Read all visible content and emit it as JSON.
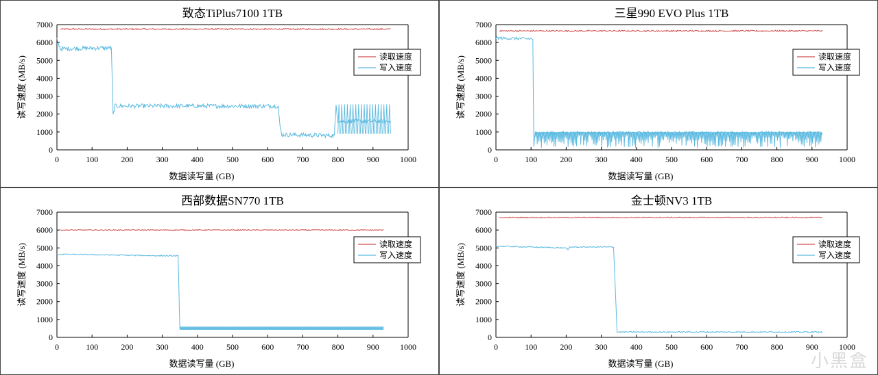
{
  "watermark": "小黑盒",
  "colors": {
    "read": "#d0504f",
    "write": "#5ab9e0",
    "axis": "#000000",
    "frame": "#000000"
  },
  "chart_data": [
    {
      "type": "line",
      "title": "致态TiPlus7100 1TB",
      "xlabel": "数据读写量 (GB)",
      "ylabel": "读写速度 (MB/s)",
      "xlim": [
        0,
        1000
      ],
      "ylim": [
        0,
        7000
      ],
      "xticks": [
        0,
        100,
        200,
        300,
        400,
        500,
        600,
        700,
        800,
        900,
        1000
      ],
      "yticks": [
        0,
        1000,
        2000,
        3000,
        4000,
        5000,
        6000,
        7000
      ],
      "grid": false,
      "legend": "right",
      "series": [
        {
          "name": "读取速度",
          "color": "#d0504f",
          "x": [
            10,
            950
          ],
          "y": [
            6750,
            6750
          ],
          "jitter": 40
        },
        {
          "name": "写入速度",
          "color": "#5ab9e0",
          "x": [
            0,
            10,
            150,
            155,
            160,
            165,
            620,
            630,
            635,
            640,
            790,
            795,
            800,
            950
          ],
          "y": [
            6200,
            5650,
            5700,
            5700,
            1900,
            2450,
            2450,
            2450,
            1300,
            850,
            800,
            2550,
            1600,
            1600
          ],
          "jitter": 120
        }
      ]
    },
    {
      "type": "line",
      "title": "三星990 EVO Plus 1TB",
      "xlabel": "数据读写量 (GB)",
      "ylabel": "读写速度 (MB/s)",
      "xlim": [
        0,
        1000
      ],
      "ylim": [
        0,
        7000
      ],
      "xticks": [
        0,
        100,
        200,
        300,
        400,
        500,
        600,
        700,
        800,
        900,
        1000
      ],
      "yticks": [
        0,
        1000,
        2000,
        3000,
        4000,
        5000,
        6000,
        7000
      ],
      "grid": false,
      "legend": "right",
      "series": [
        {
          "name": "读取速度",
          "color": "#d0504f",
          "x": [
            10,
            930
          ],
          "y": [
            6650,
            6650
          ],
          "jitter": 40
        },
        {
          "name": "写入速度",
          "color": "#5ab9e0",
          "x": [
            0,
            105,
            108,
            112,
            930
          ],
          "y": [
            6250,
            6200,
            200,
            950,
            950
          ],
          "jitter": 80
        }
      ]
    },
    {
      "type": "line",
      "title": "西部数据SN770 1TB",
      "xlabel": "数据读写量 (GB)",
      "ylabel": "读写速度 (MB/s)",
      "xlim": [
        0,
        1000
      ],
      "ylim": [
        0,
        7000
      ],
      "xticks": [
        0,
        100,
        200,
        300,
        400,
        500,
        600,
        700,
        800,
        900,
        1000
      ],
      "yticks": [
        0,
        1000,
        2000,
        3000,
        4000,
        5000,
        6000,
        7000
      ],
      "grid": false,
      "legend": "right",
      "series": [
        {
          "name": "读取速度",
          "color": "#d0504f",
          "x": [
            10,
            930
          ],
          "y": [
            6000,
            6000
          ],
          "jitter": 25
        },
        {
          "name": "写入速度",
          "color": "#5ab9e0",
          "x": [
            0,
            340,
            345,
            350,
            930
          ],
          "y": [
            4650,
            4550,
            4550,
            500,
            500
          ],
          "jitter": 30
        }
      ]
    },
    {
      "type": "line",
      "title": "金士顿NV3 1TB",
      "xlabel": "数据读写量 (GB)",
      "ylabel": "读写速度 (MB/s)",
      "xlim": [
        0,
        1000
      ],
      "ylim": [
        0,
        7000
      ],
      "xticks": [
        0,
        100,
        200,
        300,
        400,
        500,
        600,
        700,
        800,
        900,
        1000
      ],
      "yticks": [
        0,
        1000,
        2000,
        3000,
        4000,
        5000,
        6000,
        7000
      ],
      "grid": false,
      "legend": "right",
      "series": [
        {
          "name": "读取速度",
          "color": "#d0504f",
          "x": [
            10,
            930
          ],
          "y": [
            6700,
            6700
          ],
          "jitter": 25
        },
        {
          "name": "写入速度",
          "color": "#5ab9e0",
          "x": [
            0,
            200,
            205,
            210,
            330,
            335,
            345,
            930
          ],
          "y": [
            5100,
            5000,
            4880,
            5050,
            5050,
            5050,
            300,
            300
          ],
          "jitter": 30
        }
      ]
    }
  ]
}
